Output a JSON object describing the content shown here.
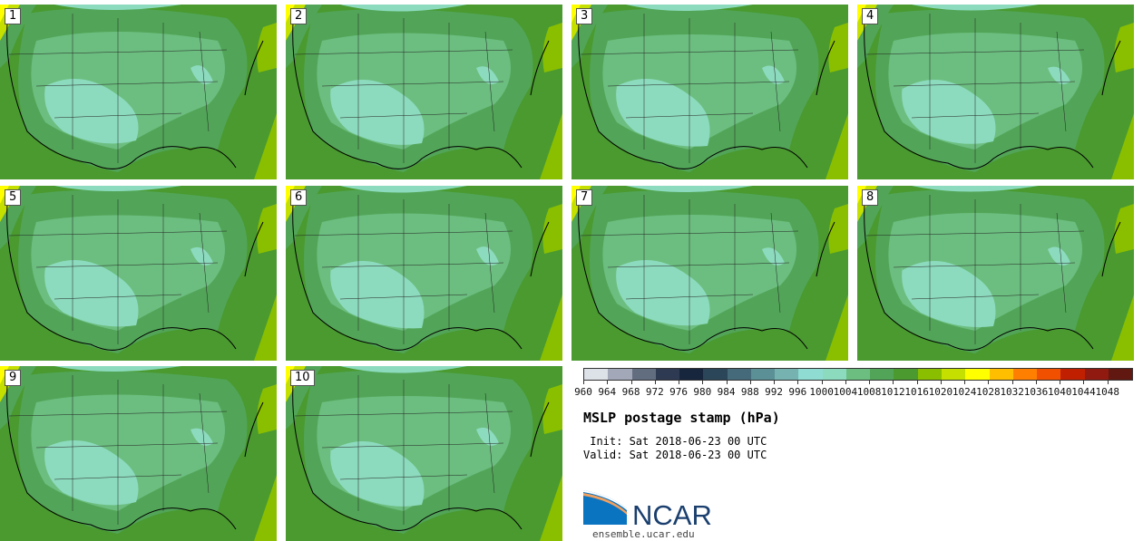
{
  "panels": [
    {
      "label": "1"
    },
    {
      "label": "2"
    },
    {
      "label": "3"
    },
    {
      "label": "4"
    },
    {
      "label": "5"
    },
    {
      "label": "6"
    },
    {
      "label": "7"
    },
    {
      "label": "8"
    },
    {
      "label": "9"
    },
    {
      "label": "10"
    }
  ],
  "colorbar": {
    "ticks": [
      "960",
      "964",
      "968",
      "972",
      "976",
      "980",
      "984",
      "988",
      "992",
      "996",
      "1000",
      "1004",
      "1008",
      "1012",
      "1016",
      "1020",
      "1024",
      "1028",
      "1032",
      "1036",
      "1040",
      "1044",
      "1048"
    ],
    "colors": [
      "#dde1e8",
      "#a2a8b8",
      "#626d80",
      "#2e3a52",
      "#17253d",
      "#2a4658",
      "#456a7a",
      "#5a9096",
      "#75b2b0",
      "#8edcd2",
      "#8ddbbf",
      "#6cbe80",
      "#52a558",
      "#4a9a30",
      "#8abf00",
      "#c4df00",
      "#ffff00",
      "#ffbf00",
      "#ff8000",
      "#f05000",
      "#c02000",
      "#901a10",
      "#601810"
    ]
  },
  "title": "MSLP postage stamp (hPa)",
  "init": " Init: Sat 2018-06-23 00 UTC",
  "valid": "Valid: Sat 2018-06-23 00 UTC",
  "logo_text": "NCAR",
  "url": "ensemble.ucar.edu"
}
